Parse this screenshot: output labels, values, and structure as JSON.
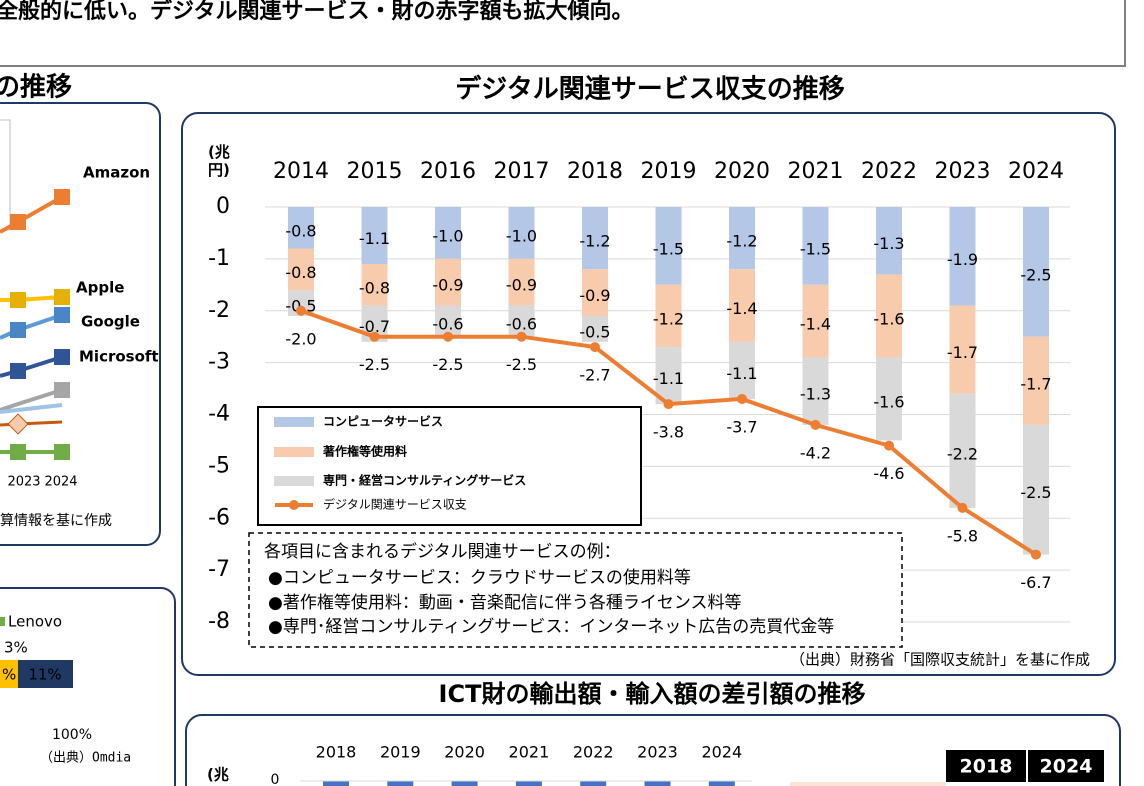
{
  "header": {
    "text": "全般的に低い。デジタル関連サービス・財の赤字額も拡大傾向。"
  },
  "left_top": {
    "title": "の推移",
    "labels": [
      "Amazon",
      "Apple",
      "Google",
      "Microsoft"
    ],
    "years": [
      "2023",
      "2024"
    ],
    "source": "算情報を基に作成"
  },
  "chart_data": {
    "type": "bar",
    "title": "デジタル関連サービス収支の推移",
    "y_label": "(兆円)",
    "categories": [
      "2014",
      "2015",
      "2016",
      "2017",
      "2018",
      "2019",
      "2020",
      "2021",
      "2022",
      "2023",
      "2024"
    ],
    "series": [
      {
        "name": "コンピュータサービス",
        "color": "#b4c7e7",
        "values": [
          -0.8,
          -1.1,
          -1.0,
          -1.0,
          -1.2,
          -1.5,
          -1.2,
          -1.5,
          -1.3,
          -1.9,
          -2.5
        ],
        "value_labels": [
          "-0.8",
          "-1.1",
          "-1.0",
          "-1.0",
          "-1.2",
          "-1.5",
          "-1.2",
          "-1.5",
          "-1.3",
          "-1.9",
          "-2.5"
        ]
      },
      {
        "name": "著作権等使用料",
        "color": "#f8cbad",
        "values": [
          -0.8,
          -0.8,
          -0.9,
          -0.9,
          -0.9,
          -1.2,
          -1.4,
          -1.4,
          -1.6,
          -1.7,
          -1.7
        ],
        "value_labels": [
          "-0.8",
          "-0.8",
          "-0.9",
          "-0.9",
          "-0.9",
          "-1.2",
          "-1.4",
          "-1.4",
          "-1.6",
          "-1.7",
          "-1.7"
        ]
      },
      {
        "name": "専門・経営コンサルティングサービス",
        "color": "#d9d9d9",
        "values": [
          -0.5,
          -0.7,
          -0.6,
          -0.6,
          -0.5,
          -1.1,
          -1.1,
          -1.3,
          -1.6,
          -2.2,
          -2.5
        ],
        "value_labels": [
          "-0.5",
          "-0.7",
          "-0.6",
          "-0.6",
          "-0.5",
          "-1.1",
          "-1.1",
          "-1.3",
          "-1.6",
          "-2.2",
          "-2.5"
        ]
      },
      {
        "name": "デジタル関連サービス収支",
        "type": "line",
        "color": "#ed7d31",
        "values": [
          -2.0,
          -2.5,
          -2.5,
          -2.5,
          -2.7,
          -3.8,
          -3.7,
          -4.2,
          -4.6,
          -5.8,
          -6.7
        ],
        "value_labels": [
          "-2.0",
          "-2.5",
          "-2.5",
          "-2.5",
          "-2.7",
          "-3.8",
          "-3.7",
          "-4.2",
          "-4.6",
          "-5.8",
          "-6.7"
        ]
      }
    ],
    "ylim": [
      -8,
      0
    ],
    "yticks": [
      0,
      -1,
      -2,
      -3,
      -4,
      -5,
      -6,
      -7,
      -8
    ],
    "grid": true,
    "legend": "bottom-left",
    "notes": {
      "title": "各項目に含まれるデジタル関連サービスの例：",
      "items": [
        "●コンピュータサービス：クラウドサービスの使用料等",
        "●著作権等使用料：動画・音楽配信に伴う各種ライセンス料等",
        "●専門･経営コンサルティングサービス：インターネット広告の売買代金等"
      ]
    },
    "source": "（出典）財務省「国際収支統計」を基に作成"
  },
  "bottom_chart": {
    "title": "ICT財の輸出額・輸入額の差引額の推移",
    "years": [
      "2018",
      "2019",
      "2020",
      "2021",
      "2022",
      "2023",
      "2024"
    ],
    "y_label": "(兆",
    "yticks": [
      0
    ],
    "table_header": [
      "2018",
      "2024"
    ]
  },
  "left_bottom": {
    "mark": "）",
    "legend": "Lenovo",
    "labels": [
      "3%",
      "%",
      "11%",
      "100%"
    ],
    "source": "（出典）Omdia"
  }
}
